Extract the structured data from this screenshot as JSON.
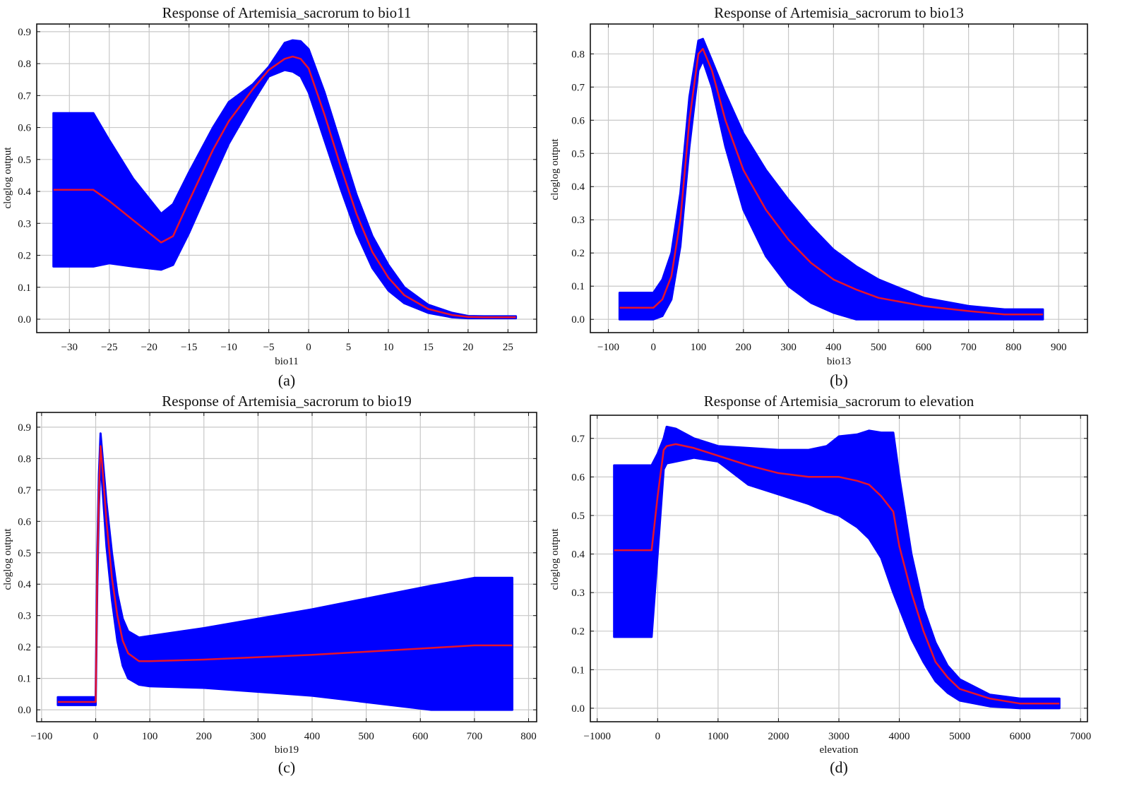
{
  "chart_data": [
    {
      "type": "area",
      "panel_label": "(a)",
      "title": "Response of Artemisia_sacrorum to bio11",
      "xlabel": "bio11",
      "ylabel": "cloglog output",
      "xlim": [
        -34.1,
        28.6
      ],
      "ylim": [
        -0.042,
        0.924
      ],
      "xticks": [
        -30,
        -25,
        -20,
        -15,
        -10,
        -5,
        0,
        5,
        10,
        15,
        20,
        25
      ],
      "yticks": [
        0.0,
        0.1,
        0.2,
        0.3,
        0.4,
        0.5,
        0.6,
        0.7,
        0.8,
        0.9
      ],
      "grid": true,
      "colors": {
        "band": "#0000ff",
        "mean": "#e8132b"
      },
      "x": [
        -32,
        -27,
        -25,
        -22,
        -18.5,
        -17,
        -15,
        -12,
        -10,
        -7,
        -5,
        -3,
        -2,
        -1,
        0,
        2,
        4,
        6,
        8,
        10,
        12,
        15,
        18,
        20,
        22,
        26
      ],
      "mean": [
        0.405,
        0.405,
        0.37,
        0.31,
        0.24,
        0.26,
        0.37,
        0.53,
        0.62,
        0.72,
        0.78,
        0.815,
        0.822,
        0.815,
        0.785,
        0.64,
        0.48,
        0.33,
        0.21,
        0.13,
        0.075,
        0.032,
        0.013,
        0.007,
        0.006,
        0.006
      ],
      "upper": [
        0.645,
        0.645,
        0.56,
        0.44,
        0.33,
        0.36,
        0.46,
        0.6,
        0.68,
        0.735,
        0.79,
        0.865,
        0.873,
        0.87,
        0.845,
        0.71,
        0.55,
        0.39,
        0.26,
        0.17,
        0.1,
        0.045,
        0.02,
        0.01,
        0.009,
        0.009
      ],
      "lower": [
        0.165,
        0.165,
        0.175,
        0.165,
        0.155,
        0.17,
        0.27,
        0.44,
        0.55,
        0.68,
        0.76,
        0.78,
        0.775,
        0.76,
        0.71,
        0.56,
        0.41,
        0.27,
        0.16,
        0.09,
        0.05,
        0.02,
        0.006,
        0.003,
        0.003,
        0.003
      ]
    },
    {
      "type": "area",
      "panel_label": "(b)",
      "title": "Response of Artemisia_sacrorum to bio13",
      "xlabel": "bio13",
      "ylabel": "cloglog output",
      "xlim": [
        -140,
        964
      ],
      "ylim": [
        -0.04,
        0.89
      ],
      "xticks": [
        -100,
        0,
        100,
        200,
        300,
        400,
        500,
        600,
        700,
        800,
        900
      ],
      "yticks": [
        0.0,
        0.1,
        0.2,
        0.3,
        0.4,
        0.5,
        0.6,
        0.7,
        0.8
      ],
      "grid": true,
      "colors": {
        "band": "#0000ff",
        "mean": "#e8132b"
      },
      "x": [
        -75,
        0,
        20,
        40,
        60,
        80,
        100,
        110,
        130,
        160,
        200,
        250,
        300,
        350,
        400,
        450,
        500,
        600,
        700,
        780,
        865
      ],
      "mean": [
        0.035,
        0.035,
        0.06,
        0.13,
        0.3,
        0.6,
        0.8,
        0.815,
        0.75,
        0.6,
        0.45,
        0.33,
        0.24,
        0.17,
        0.12,
        0.09,
        0.065,
        0.04,
        0.025,
        0.015,
        0.015
      ],
      "upper": [
        0.08,
        0.08,
        0.12,
        0.2,
        0.38,
        0.67,
        0.84,
        0.845,
        0.78,
        0.68,
        0.56,
        0.45,
        0.36,
        0.28,
        0.21,
        0.16,
        0.12,
        0.065,
        0.04,
        0.03,
        0.03
      ],
      "lower": [
        0,
        0,
        0.01,
        0.06,
        0.22,
        0.52,
        0.75,
        0.78,
        0.7,
        0.52,
        0.33,
        0.19,
        0.1,
        0.05,
        0.02,
        0,
        0,
        0,
        0,
        0,
        0
      ]
    },
    {
      "type": "area",
      "panel_label": "(c)",
      "title": "Response of Artemisia_sacrorum to bio19",
      "xlabel": "bio19",
      "ylabel": "cloglog output",
      "xlim": [
        -109,
        815
      ],
      "ylim": [
        -0.038,
        0.947
      ],
      "xticks": [
        -100,
        0,
        100,
        200,
        300,
        400,
        500,
        600,
        700,
        800
      ],
      "yticks": [
        0.0,
        0.1,
        0.2,
        0.3,
        0.4,
        0.5,
        0.6,
        0.7,
        0.8,
        0.9
      ],
      "grid": true,
      "colors": {
        "band": "#0000ff",
        "mean": "#e8132b"
      },
      "x": [
        -70,
        0,
        3,
        6,
        9,
        12,
        20,
        30,
        40,
        50,
        60,
        80,
        100,
        200,
        400,
        620,
        700,
        770
      ],
      "mean": [
        0.025,
        0.025,
        0.45,
        0.7,
        0.84,
        0.78,
        0.6,
        0.42,
        0.3,
        0.22,
        0.18,
        0.155,
        0.155,
        0.16,
        0.175,
        0.197,
        0.205,
        0.205
      ],
      "upper": [
        0.04,
        0.04,
        0.5,
        0.75,
        0.88,
        0.82,
        0.66,
        0.5,
        0.37,
        0.29,
        0.25,
        0.23,
        0.235,
        0.26,
        0.32,
        0.395,
        0.42,
        0.42
      ],
      "lower": [
        0.015,
        0.015,
        0.4,
        0.65,
        0.8,
        0.72,
        0.52,
        0.35,
        0.22,
        0.14,
        0.1,
        0.08,
        0.075,
        0.07,
        0.045,
        0,
        0,
        0
      ]
    },
    {
      "type": "area",
      "panel_label": "(d)",
      "title": "Response of Artemisia_sacrorum to elevation",
      "xlabel": "elevation",
      "ylabel": "cloglog output",
      "xlim": [
        -1114,
        7114
      ],
      "ylim": [
        -0.035,
        0.76
      ],
      "xticks": [
        -1000,
        0,
        1000,
        2000,
        3000,
        4000,
        5000,
        6000,
        7000
      ],
      "yticks": [
        0.0,
        0.1,
        0.2,
        0.3,
        0.4,
        0.5,
        0.6,
        0.7
      ],
      "grid": true,
      "colors": {
        "band": "#0000ff",
        "mean": "#e8132b"
      },
      "x": [
        -720,
        -100,
        0,
        100,
        150,
        300,
        600,
        1000,
        1500,
        2000,
        2500,
        2800,
        3000,
        3300,
        3500,
        3700,
        3900,
        4000,
        4200,
        4400,
        4600,
        4800,
        5000,
        5500,
        6000,
        6650
      ],
      "mean": [
        0.41,
        0.41,
        0.55,
        0.67,
        0.68,
        0.685,
        0.675,
        0.655,
        0.63,
        0.61,
        0.6,
        0.6,
        0.6,
        0.59,
        0.58,
        0.55,
        0.51,
        0.42,
        0.3,
        0.2,
        0.12,
        0.08,
        0.05,
        0.025,
        0.012,
        0.012
      ],
      "upper": [
        0.63,
        0.63,
        0.66,
        0.7,
        0.73,
        0.725,
        0.7,
        0.68,
        0.675,
        0.67,
        0.67,
        0.68,
        0.705,
        0.71,
        0.72,
        0.715,
        0.715,
        0.6,
        0.4,
        0.26,
        0.17,
        0.11,
        0.075,
        0.035,
        0.025,
        0.025
      ],
      "lower": [
        0.185,
        0.185,
        0.4,
        0.62,
        0.635,
        0.64,
        0.65,
        0.64,
        0.58,
        0.555,
        0.53,
        0.51,
        0.5,
        0.47,
        0.44,
        0.39,
        0.3,
        0.26,
        0.18,
        0.12,
        0.07,
        0.04,
        0.02,
        0.005,
        0,
        0
      ]
    }
  ]
}
